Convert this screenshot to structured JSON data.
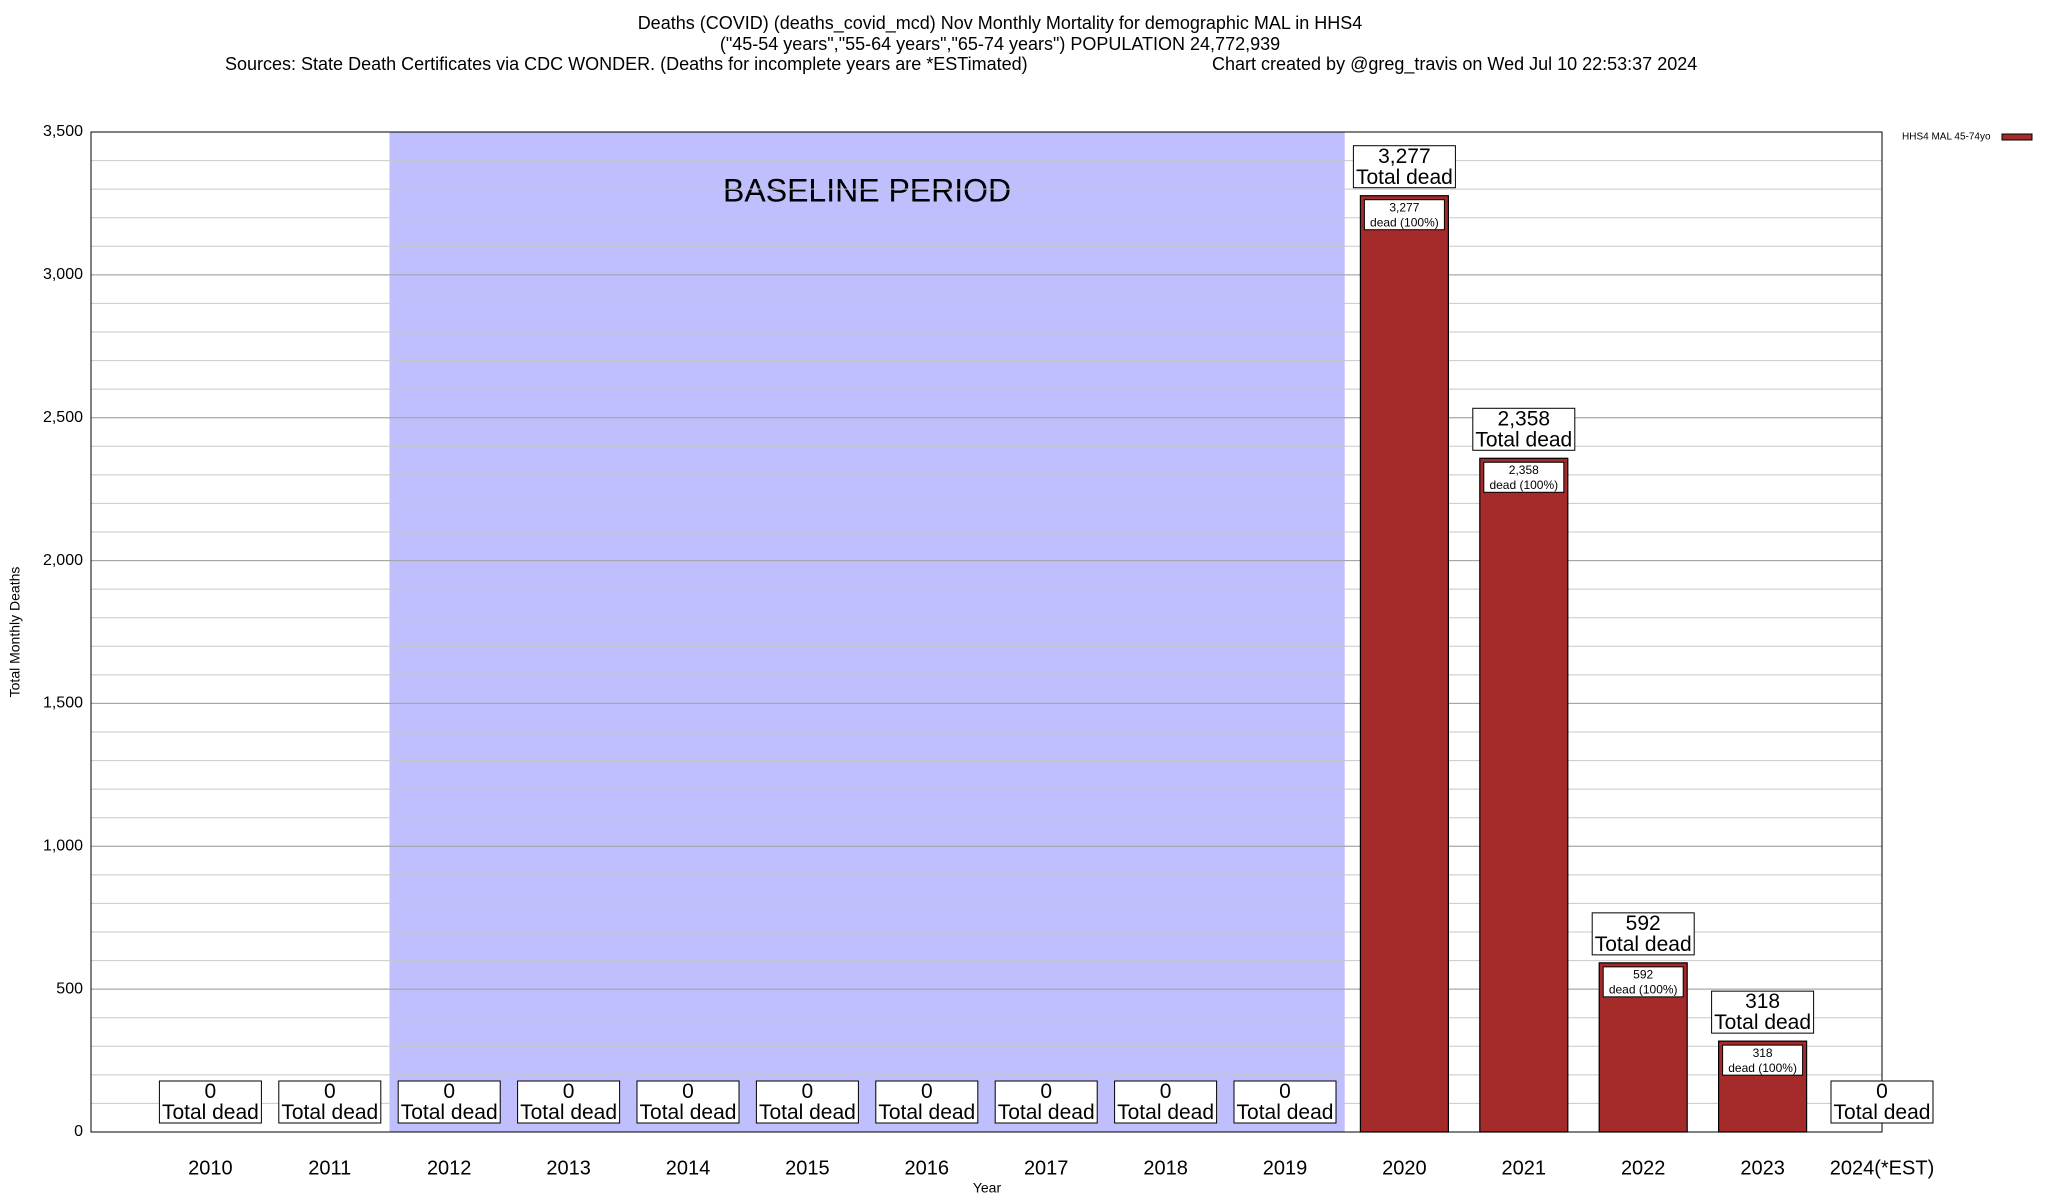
{
  "chart_data": {
    "type": "bar",
    "title": "Deaths (COVID) (deaths_covid_mcd) Nov Monthly Mortality for demographic MAL in HHS4",
    "subtitle": "(\"45-54 years\",\"55-64 years\",\"65-74 years\") POPULATION 24,772,939",
    "sources": "Sources: State Death Certificates via CDC WONDER. (Deaths for incomplete years are *ESTimated)",
    "credit": "Chart created by @greg_travis on Wed Jul 10 22:53:37 2024",
    "x_label": "Year",
    "y_label": "Total Monthly Deaths",
    "categories": [
      "2010",
      "2011",
      "2012",
      "2013",
      "2014",
      "2015",
      "2016",
      "2017",
      "2018",
      "2019",
      "2020",
      "2021",
      "2022",
      "2023",
      "2024(*EST)"
    ],
    "series": [
      {
        "name": "HHS4 MAL 45-74yo",
        "color": "#a52a2a",
        "values": [
          0,
          0,
          0,
          0,
          0,
          0,
          0,
          0,
          0,
          0,
          3277,
          2358,
          592,
          318,
          0
        ],
        "value_labels": [
          "0",
          "0",
          "0",
          "0",
          "0",
          "0",
          "0",
          "0",
          "0",
          "0",
          "3,277",
          "2,358",
          "592",
          "318",
          "0"
        ]
      }
    ],
    "total_label": "Total dead",
    "share_label": "dead (100%)",
    "baseline_label": "BASELINE PERIOD",
    "baseline_span": [
      "2012",
      "2019"
    ],
    "baseline_color": "#bfbffd",
    "ylim": [
      0,
      3500
    ],
    "yticks": [
      0,
      {
        "value": 500,
        "label": "500"
      },
      {
        "value": 1000,
        "label": "1,000"
      },
      {
        "value": 1500,
        "label": "1,500"
      },
      {
        "value": 2000,
        "label": "2,000"
      },
      {
        "value": 2500,
        "label": "2,500"
      },
      {
        "value": 3000,
        "label": "3,000"
      },
      {
        "value": 3500,
        "label": "3,500"
      }
    ],
    "minor_grid_step": 100,
    "grid": true,
    "legend": "top-right"
  }
}
